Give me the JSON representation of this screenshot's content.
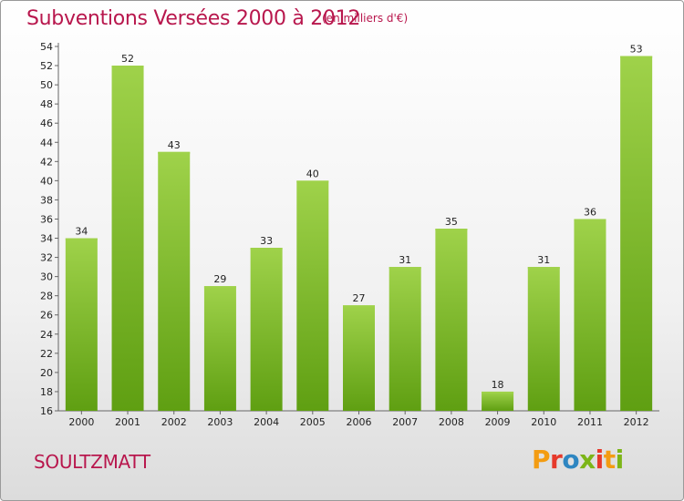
{
  "header": {
    "title": "Subventions Versées 2000 à 2012",
    "subtitle": "(en milliers d'€)"
  },
  "footer": {
    "commune": "SOULTZMATT",
    "logo_letters": [
      "P",
      "r",
      "o",
      "x",
      "i",
      "t",
      "i"
    ],
    "logo_colors": [
      "#f39c12",
      "#e6392b",
      "#2e86c1",
      "#7cb518",
      "#e6392b",
      "#f39c12",
      "#7cb518"
    ]
  },
  "colors": {
    "accent": "#b8174d",
    "bar_light": "#9fd24a",
    "bar_dark": "#5f9f12"
  },
  "chart_data": {
    "type": "bar",
    "title": "Subventions Versées 2000 à 2012",
    "subtitle": "(en milliers d'€)",
    "xlabel": "",
    "ylabel": "",
    "categories": [
      "2000",
      "2001",
      "2002",
      "2003",
      "2004",
      "2005",
      "2006",
      "2007",
      "2008",
      "2009",
      "2010",
      "2011",
      "2012"
    ],
    "values": [
      34,
      52,
      43,
      29,
      33,
      40,
      27,
      31,
      35,
      18,
      31,
      36,
      53
    ],
    "ylim": [
      16,
      54
    ],
    "yticks": [
      16,
      18,
      20,
      22,
      24,
      26,
      28,
      30,
      32,
      34,
      36,
      38,
      40,
      42,
      44,
      46,
      48,
      50,
      52,
      54
    ],
    "grid": false,
    "legend": "none"
  }
}
